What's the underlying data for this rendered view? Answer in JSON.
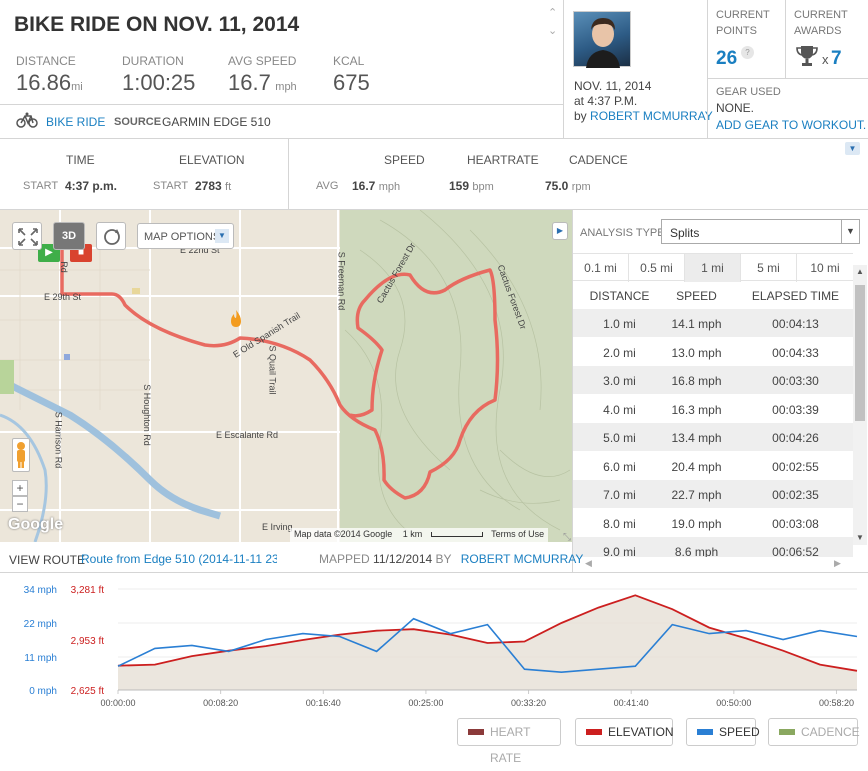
{
  "header": {
    "title": "BIKE RIDE ON NOV. 11, 2014",
    "stats": [
      {
        "label": "DISTANCE",
        "value": "16.86",
        "unit": "mi"
      },
      {
        "label": "DURATION",
        "value": "1:00:25",
        "unit": ""
      },
      {
        "label": "AVG SPEED",
        "value": "16.7",
        "unit": "mph"
      },
      {
        "label": "KCAL",
        "value": "675",
        "unit": ""
      }
    ],
    "activity_type": "BIKE RIDE",
    "source_label": "SOURCE",
    "source_value": "GARMIN EDGE 510"
  },
  "user": {
    "date": "NOV. 11, 2014",
    "time": "at 4:37 P.M.",
    "by_label": "by",
    "name": "ROBERT MCMURRAY"
  },
  "points": {
    "label_line1": "CURRENT",
    "label_line2": "POINTS",
    "value": "26",
    "help": "?"
  },
  "awards": {
    "label_line1": "CURRENT",
    "label_line2": "AWARDS",
    "x_label": "x",
    "value": "7"
  },
  "gear": {
    "label": "GEAR USED",
    "value": "NONE.",
    "add_link": "ADD GEAR TO WORKOUT."
  },
  "summary": {
    "time_header": "TIME",
    "elevation_header": "ELEVATION",
    "start_label": "START",
    "start_time": "4:37 p.m.",
    "start_elev": "2783",
    "start_elev_unit": "ft",
    "speed_header": "SPEED",
    "hr_header": "HEARTRATE",
    "cadence_header": "CADENCE",
    "avg_label": "AVG",
    "avg_speed": "16.7",
    "avg_speed_unit": "mph",
    "avg_hr": "159",
    "avg_hr_unit": "bpm",
    "avg_cadence": "75.0",
    "avg_cadence_unit": "rpm"
  },
  "map": {
    "options_label": "MAP OPTIONS",
    "label_3d": "3D",
    "streets": [
      "E 29th St",
      "E Old Spanish Trail",
      "S Quail Trail",
      "S Houghton Rd",
      "S Harrison Rd",
      "E Escalante Rd",
      "S Freeman Rd",
      "Cactus Forest Dr",
      "Cactus Forest Dr",
      "E Irving",
      "E 22nd St",
      "Rd"
    ],
    "attribution": "Map data ©2014 Google",
    "scale": "1 km",
    "terms": "Terms of Use",
    "logo": "Google",
    "zoom_in": "+",
    "zoom_out": "−"
  },
  "analysis": {
    "type_label": "ANALYSIS TYPE:",
    "type_value": "Splits",
    "tabs": [
      "0.1 mi",
      "0.5 mi",
      "1 mi",
      "5 mi",
      "10 mi"
    ],
    "active_tab": "1 mi",
    "columns": [
      "DISTANCE",
      "SPEED",
      "ELAPSED TIME"
    ],
    "rows": [
      [
        "1.0 mi",
        "14.1 mph",
        "00:04:13"
      ],
      [
        "2.0 mi",
        "13.0 mph",
        "00:04:33"
      ],
      [
        "3.0 mi",
        "16.8 mph",
        "00:03:30"
      ],
      [
        "4.0 mi",
        "16.3 mph",
        "00:03:39"
      ],
      [
        "5.0 mi",
        "13.4 mph",
        "00:04:26"
      ],
      [
        "6.0 mi",
        "20.4 mph",
        "00:02:55"
      ],
      [
        "7.0 mi",
        "22.7 mph",
        "00:02:35"
      ],
      [
        "8.0 mi",
        "19.0 mph",
        "00:03:08"
      ],
      [
        "9.0 mi",
        "8.6 mph",
        "00:06:52"
      ]
    ]
  },
  "route": {
    "view_label": "VIEW ROUTE",
    "route_name": "Route from Edge 510 (2014-11-11 23:3",
    "mapped_label": "MAPPED",
    "mapped_date": "11/12/2014",
    "by_label": "BY",
    "mapped_by": "ROBERT MCMURRAY"
  },
  "chart_data": {
    "type": "line",
    "x_ticks": [
      "00:00:00",
      "00:08:20",
      "00:16:40",
      "00:25:00",
      "00:33:20",
      "00:41:40",
      "00:50:00",
      "00:58:20"
    ],
    "speed_ticks": [
      "34 mph",
      "22 mph",
      "11 mph",
      "0 mph"
    ],
    "elev_ticks": [
      "3,281 ft",
      "2,953 ft",
      "2,625 ft"
    ],
    "speed_ylim": [
      0,
      34
    ],
    "elev_ylim": [
      2625,
      3281
    ],
    "x_minutes": [
      0,
      3,
      6,
      9,
      12,
      15,
      18,
      21,
      24,
      27,
      30,
      33,
      36,
      39,
      42,
      45,
      48,
      51,
      54,
      57,
      60
    ],
    "series": [
      {
        "name": "ELEVATION",
        "color": "#cc1f1f",
        "values": [
          2783,
          2790,
          2845,
          2880,
          2910,
          2950,
          2985,
          3010,
          3020,
          2985,
          2930,
          2940,
          3060,
          3160,
          3240,
          3150,
          3030,
          2960,
          2880,
          2790,
          2750
        ]
      },
      {
        "name": "SPEED",
        "color": "#2a7fd4",
        "values": [
          8,
          14,
          15,
          13,
          17,
          19,
          18,
          13,
          24,
          19,
          22,
          7,
          6,
          7,
          8,
          22,
          19,
          20,
          17,
          20,
          18
        ]
      }
    ],
    "legend": [
      {
        "name": "HEART RATE",
        "color": "#8b3a3a",
        "active": false
      },
      {
        "name": "ELEVATION",
        "color": "#cc1f1f",
        "active": true
      },
      {
        "name": "SPEED",
        "color": "#2a7fd4",
        "active": true
      },
      {
        "name": "CADENCE",
        "color": "#8aa860",
        "active": false
      }
    ]
  }
}
